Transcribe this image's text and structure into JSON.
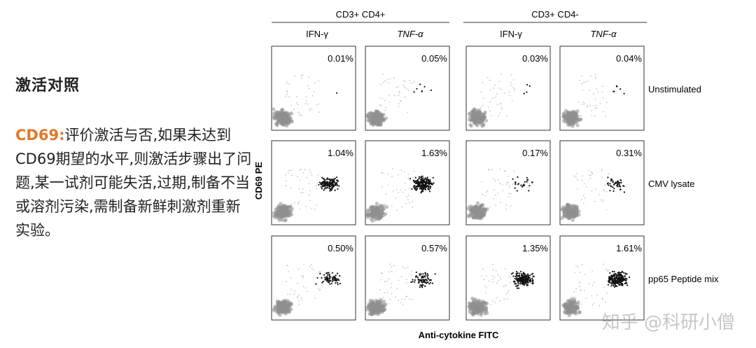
{
  "left_text": {
    "heading": "激活对照",
    "label": "CD69:",
    "body": "评价激活与否,如果未达到CD69期望的水平,则激活步骤出了问题,某一试剂可能失活,过期,制备不当或溶剂污染,需制备新鲜刺激剂重新实验。"
  },
  "chart_data": {
    "type": "scatter",
    "group_headers": [
      "CD3+ CD4+",
      "CD3+ CD4-"
    ],
    "column_headers": [
      "IFN-γ",
      "TNF-α",
      "IFN-γ",
      "TNF-α"
    ],
    "row_labels": [
      "Unstimulated",
      "CMV lysate",
      "pp65 Peptide mix"
    ],
    "xlabel": "Anti-cytokine FITC",
    "ylabel": "CD69 PE",
    "percentages": [
      [
        "0.01%",
        "0.05%",
        "0.03%",
        "0.04%"
      ],
      [
        "1.04%",
        "1.63%",
        "0.17%",
        "0.31%"
      ],
      [
        "0.50%",
        "0.57%",
        "1.35%",
        "1.61%"
      ]
    ],
    "grid": false,
    "legend": "none"
  },
  "watermark": "知乎 @科研小僧"
}
